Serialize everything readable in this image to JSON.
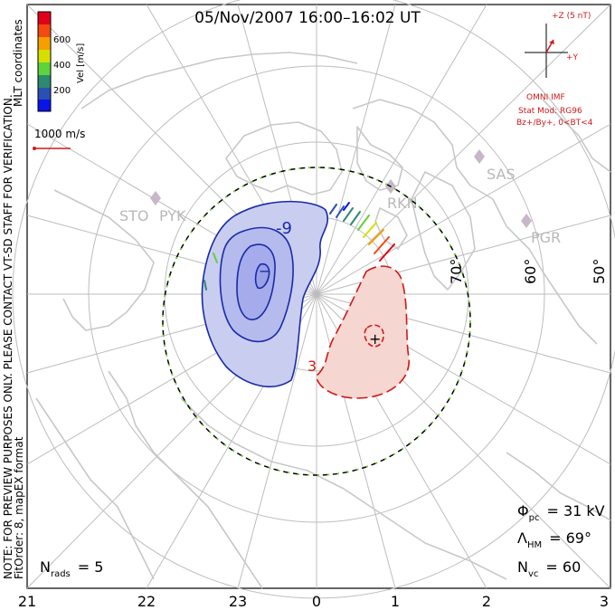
{
  "title": "05/Nov/2007 16:00–16:02 UT",
  "colorbar": {
    "label": "Vel [m/s]",
    "ticks": [
      "600",
      "400",
      "200"
    ],
    "colors": [
      "#e0001a",
      "#f24a10",
      "#f5a000",
      "#d6e000",
      "#5fd23c",
      "#2c8a6e",
      "#2a50b4",
      "#0a14e8"
    ]
  },
  "side_label_coords": "MLT coordinates",
  "side_note": "NOTE: FOR PREVIEW PURPOSES ONLY. PLEASE CONTACT VT-SD STAFF FOR VERIFICATION.",
  "side_fitorder": "FitOrder: 8, mapEX format",
  "velocity_scale": "1000 m/s",
  "imf": {
    "z_label": "+Z (5 nT)",
    "y_label": "+Y",
    "source": "OMNI IMF",
    "model": "Stat Mod: RG96",
    "conditions": "Bz+/By+, 0<BT<4"
  },
  "stations": [
    "STO",
    "PYK",
    "RKN",
    "SAS",
    "PGR"
  ],
  "latitude_labels": [
    "70°",
    "60°",
    "50°"
  ],
  "mlt_labels": [
    "21",
    "22",
    "23",
    "0",
    "1",
    "2",
    "3"
  ],
  "contours": {
    "negative_label": "-9",
    "positive_label": "3",
    "min_marker": "−",
    "max_marker": "+"
  },
  "stats": {
    "phi_pc": "= 31 kV",
    "lambda_hm": "= 69°",
    "n_vc": "= 60",
    "n_rads": "= 5"
  },
  "stat_symbols": {
    "phi": "Φ",
    "phi_sub": "pc",
    "lambda": "Λ",
    "lambda_sub": "HM",
    "n": "N",
    "n_vc_sub": "vc",
    "n_rads_sub": "rads"
  },
  "colors": {
    "negative_line": "#1a2aa8",
    "negative_fill": "#c9cdf0",
    "positive_line": "#d01818",
    "positive_fill": "#f6d6d0",
    "coast": "#c8c8c8",
    "grid": "#bdbdbd",
    "imf": "#d01818",
    "station": "#c7b7c8"
  }
}
